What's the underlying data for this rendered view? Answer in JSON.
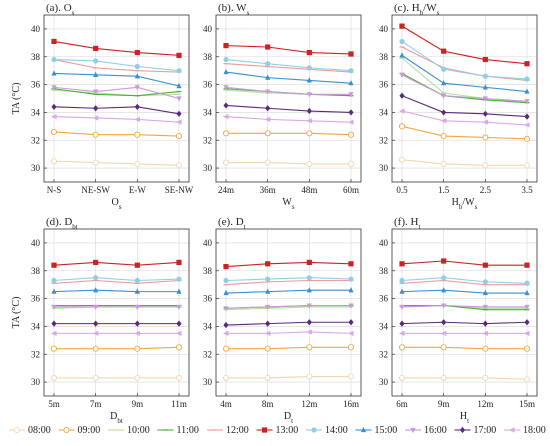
{
  "colors": {
    "08:00": "#f5d5b0",
    "09:00": "#f2a640",
    "10:00": "#b8e0a8",
    "11:00": "#4caf3a",
    "12:00": "#f09a9a",
    "13:00": "#cc2222",
    "14:00": "#8ecfe8",
    "15:00": "#3a8fd0",
    "16:00": "#c89ad8",
    "17:00": "#5a2a7a",
    "18:00": "#d9a8e8"
  },
  "markers": {
    "08:00": "circle-open",
    "09:00": "circle-open",
    "10:00": "line",
    "11:00": "line",
    "12:00": "line",
    "13:00": "square",
    "14:00": "circle",
    "15:00": "triangle",
    "16:00": "triangle-down",
    "17:00": "diamond",
    "18:00": "triangle-left"
  },
  "legend": [
    "08:00",
    "09:00",
    "10:00",
    "11:00",
    "12:00",
    "13:00",
    "14:00",
    "15:00",
    "16:00",
    "17:00",
    "18:00"
  ],
  "chart_data": [
    {
      "type": "line",
      "title": "(a). O",
      "title_sub": "s",
      "xlabel": "O",
      "xlabel_sub": "s",
      "ylabel": "TA (°C)",
      "ylim": [
        29,
        41
      ],
      "yticks": [
        30,
        32,
        34,
        36,
        38,
        40
      ],
      "categories": [
        "N-S",
        "NE-SW",
        "E-W",
        "SE-NW"
      ],
      "series": [
        {
          "name": "08:00",
          "values": [
            30.5,
            30.4,
            30.3,
            30.2
          ]
        },
        {
          "name": "09:00",
          "values": [
            32.6,
            32.4,
            32.4,
            32.3
          ]
        },
        {
          "name": "10:00",
          "values": [
            35.6,
            35.4,
            35.2,
            35.3
          ]
        },
        {
          "name": "11:00",
          "values": [
            35.7,
            35.3,
            35.2,
            35.5
          ]
        },
        {
          "name": "12:00",
          "values": [
            37.8,
            37.2,
            37.0,
            36.9
          ]
        },
        {
          "name": "13:00",
          "values": [
            39.1,
            38.6,
            38.3,
            38.1
          ]
        },
        {
          "name": "14:00",
          "values": [
            37.8,
            37.7,
            37.3,
            37.0
          ]
        },
        {
          "name": "15:00",
          "values": [
            36.8,
            36.7,
            36.6,
            35.9
          ]
        },
        {
          "name": "16:00",
          "values": [
            35.8,
            35.5,
            35.8,
            35.0
          ]
        },
        {
          "name": "17:00",
          "values": [
            34.4,
            34.3,
            34.4,
            33.9
          ]
        },
        {
          "name": "18:00",
          "values": [
            33.7,
            33.6,
            33.5,
            33.3
          ]
        }
      ]
    },
    {
      "type": "line",
      "title": "(b). W",
      "title_sub": "s",
      "xlabel": "W",
      "xlabel_sub": "s",
      "ylabel": "",
      "ylim": [
        29,
        41
      ],
      "yticks": [
        30,
        32,
        34,
        36,
        38,
        40
      ],
      "categories": [
        "24m",
        "36m",
        "48m",
        "60m"
      ],
      "series": [
        {
          "name": "08:00",
          "values": [
            30.4,
            30.4,
            30.3,
            30.3
          ]
        },
        {
          "name": "09:00",
          "values": [
            32.5,
            32.5,
            32.5,
            32.4
          ]
        },
        {
          "name": "10:00",
          "values": [
            35.6,
            35.4,
            35.3,
            35.2
          ]
        },
        {
          "name": "11:00",
          "values": [
            35.7,
            35.5,
            35.3,
            35.2
          ]
        },
        {
          "name": "12:00",
          "values": [
            37.5,
            37.3,
            37.1,
            36.9
          ]
        },
        {
          "name": "13:00",
          "values": [
            38.8,
            38.7,
            38.3,
            38.2
          ]
        },
        {
          "name": "14:00",
          "values": [
            37.8,
            37.5,
            37.2,
            37.0
          ]
        },
        {
          "name": "15:00",
          "values": [
            36.9,
            36.5,
            36.3,
            36.1
          ]
        },
        {
          "name": "16:00",
          "values": [
            35.8,
            35.5,
            35.3,
            35.3
          ]
        },
        {
          "name": "17:00",
          "values": [
            34.5,
            34.3,
            34.1,
            34.0
          ]
        },
        {
          "name": "18:00",
          "values": [
            33.7,
            33.5,
            33.4,
            33.3
          ]
        }
      ]
    },
    {
      "type": "line",
      "title": "(c). H",
      "title_sub": "b",
      "title_rest": "/W",
      "title_rest_sub": "s",
      "xlabel": "H",
      "xlabel_sub": "b",
      "xlabel_rest": "/W",
      "xlabel_rest_sub": "s",
      "ylabel": "",
      "ylim": [
        29,
        41
      ],
      "yticks": [
        30,
        32,
        34,
        36,
        38,
        40
      ],
      "categories": [
        "0.5",
        "1.5",
        "2.5",
        "3.5"
      ],
      "series": [
        {
          "name": "08:00",
          "values": [
            30.6,
            30.3,
            30.2,
            30.2
          ]
        },
        {
          "name": "09:00",
          "values": [
            33.0,
            32.3,
            32.2,
            32.1
          ]
        },
        {
          "name": "10:00",
          "values": [
            37.9,
            35.4,
            35.0,
            34.7
          ]
        },
        {
          "name": "11:00",
          "values": [
            36.8,
            35.2,
            34.9,
            34.7
          ]
        },
        {
          "name": "12:00",
          "values": [
            38.7,
            37.2,
            36.6,
            36.3
          ]
        },
        {
          "name": "13:00",
          "values": [
            40.2,
            38.4,
            37.8,
            37.5
          ]
        },
        {
          "name": "14:00",
          "values": [
            39.1,
            37.1,
            36.6,
            36.4
          ]
        },
        {
          "name": "15:00",
          "values": [
            38.1,
            36.1,
            35.8,
            35.5
          ]
        },
        {
          "name": "16:00",
          "values": [
            36.7,
            35.2,
            35.0,
            34.8
          ]
        },
        {
          "name": "17:00",
          "values": [
            35.2,
            34.0,
            33.9,
            33.7
          ]
        },
        {
          "name": "18:00",
          "values": [
            34.1,
            33.4,
            33.3,
            33.1
          ]
        }
      ]
    },
    {
      "type": "line",
      "title": "(d). D",
      "title_sub": "bt",
      "xlabel": "D",
      "xlabel_sub": "bt",
      "ylabel": "TA (°C)",
      "ylim": [
        29,
        41
      ],
      "yticks": [
        30,
        32,
        34,
        36,
        38,
        40
      ],
      "categories": [
        "5m",
        "7m",
        "9m",
        "11m"
      ],
      "series": [
        {
          "name": "08:00",
          "values": [
            30.3,
            30.3,
            30.3,
            30.3
          ]
        },
        {
          "name": "09:00",
          "values": [
            32.4,
            32.4,
            32.4,
            32.5
          ]
        },
        {
          "name": "10:00",
          "values": [
            35.3,
            35.4,
            35.4,
            35.4
          ]
        },
        {
          "name": "11:00",
          "values": [
            35.5,
            35.5,
            35.5,
            35.5
          ]
        },
        {
          "name": "12:00",
          "values": [
            37.1,
            37.3,
            37.1,
            37.3
          ]
        },
        {
          "name": "13:00",
          "values": [
            38.4,
            38.6,
            38.4,
            38.6
          ]
        },
        {
          "name": "14:00",
          "values": [
            37.3,
            37.5,
            37.3,
            37.4
          ]
        },
        {
          "name": "15:00",
          "values": [
            36.5,
            36.6,
            36.5,
            36.5
          ]
        },
        {
          "name": "16:00",
          "values": [
            35.4,
            35.4,
            35.4,
            35.4
          ]
        },
        {
          "name": "17:00",
          "values": [
            34.2,
            34.2,
            34.2,
            34.2
          ]
        },
        {
          "name": "18:00",
          "values": [
            33.5,
            33.5,
            33.5,
            33.5
          ]
        }
      ]
    },
    {
      "type": "line",
      "title": "(e). D",
      "title_sub": "t",
      "xlabel": "D",
      "xlabel_sub": "t",
      "ylabel": "",
      "ylim": [
        29,
        41
      ],
      "yticks": [
        30,
        32,
        34,
        36,
        38,
        40
      ],
      "categories": [
        "4m",
        "8m",
        "12m",
        "16m"
      ],
      "series": [
        {
          "name": "08:00",
          "values": [
            30.3,
            30.3,
            30.4,
            30.4
          ]
        },
        {
          "name": "09:00",
          "values": [
            32.4,
            32.4,
            32.5,
            32.5
          ]
        },
        {
          "name": "10:00",
          "values": [
            35.2,
            35.3,
            35.4,
            35.4
          ]
        },
        {
          "name": "11:00",
          "values": [
            35.3,
            35.4,
            35.5,
            35.5
          ]
        },
        {
          "name": "12:00",
          "values": [
            37.0,
            37.2,
            37.3,
            37.3
          ]
        },
        {
          "name": "13:00",
          "values": [
            38.3,
            38.5,
            38.6,
            38.5
          ]
        },
        {
          "name": "14:00",
          "values": [
            37.3,
            37.4,
            37.5,
            37.4
          ]
        },
        {
          "name": "15:00",
          "values": [
            36.4,
            36.5,
            36.6,
            36.6
          ]
        },
        {
          "name": "16:00",
          "values": [
            35.3,
            35.4,
            35.5,
            35.5
          ]
        },
        {
          "name": "17:00",
          "values": [
            34.1,
            34.2,
            34.3,
            34.3
          ]
        },
        {
          "name": "18:00",
          "values": [
            33.5,
            33.5,
            33.6,
            33.5
          ]
        }
      ]
    },
    {
      "type": "line",
      "title": "(f). H",
      "title_sub": "t",
      "xlabel": "H",
      "xlabel_sub": "t",
      "ylabel": "",
      "ylim": [
        29,
        41
      ],
      "yticks": [
        30,
        32,
        34,
        36,
        38,
        40
      ],
      "categories": [
        "6m",
        "9m",
        "12m",
        "15m"
      ],
      "series": [
        {
          "name": "08:00",
          "values": [
            30.3,
            30.3,
            30.3,
            30.2
          ]
        },
        {
          "name": "09:00",
          "values": [
            32.5,
            32.5,
            32.4,
            32.4
          ]
        },
        {
          "name": "10:00",
          "values": [
            35.4,
            35.5,
            35.3,
            35.3
          ]
        },
        {
          "name": "11:00",
          "values": [
            35.5,
            35.5,
            35.2,
            35.2
          ]
        },
        {
          "name": "12:00",
          "values": [
            37.1,
            37.3,
            37.0,
            37.0
          ]
        },
        {
          "name": "13:00",
          "values": [
            38.5,
            38.7,
            38.4,
            38.4
          ]
        },
        {
          "name": "14:00",
          "values": [
            37.3,
            37.5,
            37.2,
            37.1
          ]
        },
        {
          "name": "15:00",
          "values": [
            36.5,
            36.6,
            36.4,
            36.4
          ]
        },
        {
          "name": "16:00",
          "values": [
            35.4,
            35.5,
            35.4,
            35.4
          ]
        },
        {
          "name": "17:00",
          "values": [
            34.2,
            34.3,
            34.2,
            34.3
          ]
        },
        {
          "name": "18:00",
          "values": [
            33.5,
            33.5,
            33.5,
            33.5
          ]
        }
      ]
    }
  ]
}
